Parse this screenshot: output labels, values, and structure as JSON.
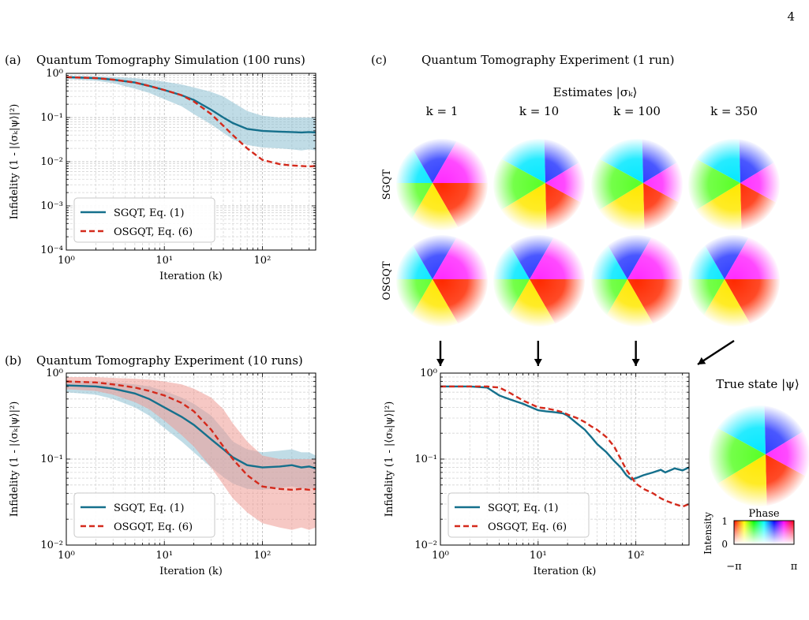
{
  "page_number": "4",
  "colors": {
    "sgqt": "#15708c",
    "osgqt": "#d42a1c",
    "sgqt_band": "#8cbfd1",
    "osgqt_band": "#ef9a93"
  },
  "panel_a": {
    "label": "(a)",
    "title": "Quantum Tomography Simulation (100 runs)",
    "ylabel": "Infidelity (1 - |⟨σₖ|ψ⟩|²)",
    "xlabel": "Iteration (k)",
    "xticks": [
      "10⁰",
      "10¹",
      "10²"
    ],
    "yticks": [
      "10⁰",
      "10⁻¹",
      "10⁻²",
      "10⁻³",
      "10⁻⁴"
    ],
    "legend": [
      "SGQT, Eq. (1)",
      "OSGQT, Eq. (6)"
    ]
  },
  "panel_b": {
    "label": "(b)",
    "title": "Quantum Tomography Experiment (10 runs)",
    "ylabel": "Infidelity (1 - |⟨σₖ|ψ⟩|²)",
    "xlabel": "Iteration (k)",
    "xticks": [
      "10⁰",
      "10¹",
      "10²"
    ],
    "yticks": [
      "10⁰",
      "10⁻¹",
      "10⁻²"
    ],
    "legend": [
      "SGQT, Eq. (1)",
      "OSGQT, Eq. (6)"
    ]
  },
  "panel_c": {
    "label": "(c)",
    "title": "Quantum Tomography Experiment (1 run)",
    "estimates_header": "Estimates |σₖ⟩",
    "k_labels": [
      "k = 1",
      "k = 10",
      "k = 100",
      "k = 350"
    ],
    "row_labels": [
      "SGQT",
      "OSGQT"
    ],
    "true_state_label": "True state |ψ⟩",
    "ylabel": "Infidelity (1 - |⟨σₖ|ψ⟩|²)",
    "xlabel": "Iteration (k)",
    "xticks": [
      "10⁰",
      "10¹",
      "10²"
    ],
    "yticks": [
      "10⁰",
      "10⁻¹",
      "10⁻²"
    ],
    "legend": [
      "SGQT, Eq. (1)",
      "OSGQT, Eq. (6)"
    ],
    "colorbar": {
      "title": "Phase",
      "ylabel": "Intensity",
      "yticks": [
        "1",
        "0"
      ],
      "xticks": [
        "−π",
        "π"
      ]
    }
  },
  "chart_data": [
    {
      "type": "line",
      "title": "Quantum Tomography Simulation (100 runs)",
      "xlabel": "Iteration (k)",
      "ylabel": "Infidelity (1 - |⟨σₖ|ψ⟩|²)",
      "x_scale": "log",
      "y_scale": "log",
      "xlim": [
        1,
        350
      ],
      "ylim": [
        0.0001,
        1
      ],
      "grid": true,
      "legend": "lower-left",
      "series": [
        {
          "name": "SGQT, Eq. (1)",
          "x": [
            1,
            2,
            3,
            5,
            7,
            10,
            15,
            20,
            30,
            40,
            50,
            70,
            100,
            150,
            200,
            250,
            300,
            350
          ],
          "y": [
            0.82,
            0.78,
            0.72,
            0.62,
            0.52,
            0.42,
            0.32,
            0.25,
            0.15,
            0.1,
            0.075,
            0.055,
            0.05,
            0.048,
            0.047,
            0.046,
            0.047,
            0.046
          ],
          "band_low": [
            0.75,
            0.68,
            0.6,
            0.45,
            0.36,
            0.26,
            0.18,
            0.12,
            0.07,
            0.045,
            0.032,
            0.024,
            0.021,
            0.02,
            0.019,
            0.018,
            0.019,
            0.018
          ],
          "band_high": [
            0.88,
            0.86,
            0.83,
            0.78,
            0.72,
            0.65,
            0.56,
            0.48,
            0.38,
            0.3,
            0.22,
            0.14,
            0.11,
            0.1,
            0.1,
            0.1,
            0.1,
            0.1
          ]
        },
        {
          "name": "OSGQT, Eq. (6)",
          "x": [
            1,
            2,
            3,
            5,
            7,
            10,
            15,
            20,
            30,
            40,
            50,
            70,
            100,
            150,
            200,
            250,
            300,
            350
          ],
          "y": [
            0.82,
            0.78,
            0.72,
            0.62,
            0.52,
            0.42,
            0.32,
            0.23,
            0.12,
            0.065,
            0.04,
            0.02,
            0.011,
            0.0088,
            0.0082,
            0.008,
            0.0078,
            0.008
          ]
        }
      ]
    },
    {
      "type": "line",
      "title": "Quantum Tomography Experiment (10 runs)",
      "xlabel": "Iteration (k)",
      "ylabel": "Infidelity (1 - |⟨σₖ|ψ⟩|²)",
      "x_scale": "log",
      "y_scale": "log",
      "xlim": [
        1,
        350
      ],
      "ylim": [
        0.01,
        1
      ],
      "grid": true,
      "legend": "lower-left",
      "series": [
        {
          "name": "SGQT, Eq. (1)",
          "x": [
            1,
            2,
            3,
            5,
            7,
            10,
            15,
            20,
            30,
            40,
            50,
            70,
            100,
            150,
            200,
            250,
            300,
            350
          ],
          "y": [
            0.72,
            0.7,
            0.66,
            0.58,
            0.5,
            0.4,
            0.31,
            0.25,
            0.17,
            0.13,
            0.105,
            0.085,
            0.08,
            0.082,
            0.085,
            0.08,
            0.082,
            0.078
          ],
          "band_low": [
            0.6,
            0.56,
            0.5,
            0.4,
            0.32,
            0.23,
            0.16,
            0.12,
            0.08,
            0.062,
            0.052,
            0.045,
            0.044,
            0.046,
            0.048,
            0.045,
            0.046,
            0.044
          ],
          "band_high": [
            0.82,
            0.8,
            0.78,
            0.74,
            0.7,
            0.62,
            0.52,
            0.44,
            0.32,
            0.22,
            0.16,
            0.13,
            0.12,
            0.125,
            0.13,
            0.12,
            0.12,
            0.11
          ]
        },
        {
          "name": "OSGQT, Eq. (6)",
          "x": [
            1,
            2,
            3,
            5,
            7,
            10,
            15,
            20,
            30,
            40,
            50,
            70,
            100,
            150,
            200,
            250,
            300,
            350
          ],
          "y": [
            0.8,
            0.78,
            0.74,
            0.68,
            0.62,
            0.55,
            0.45,
            0.36,
            0.22,
            0.14,
            0.1,
            0.065,
            0.048,
            0.045,
            0.044,
            0.045,
            0.044,
            0.045
          ],
          "band_low": [
            0.65,
            0.62,
            0.56,
            0.46,
            0.38,
            0.28,
            0.19,
            0.14,
            0.08,
            0.05,
            0.035,
            0.024,
            0.018,
            0.016,
            0.015,
            0.016,
            0.015,
            0.016
          ],
          "band_high": [
            0.9,
            0.9,
            0.88,
            0.86,
            0.84,
            0.8,
            0.74,
            0.66,
            0.52,
            0.38,
            0.26,
            0.16,
            0.11,
            0.1,
            0.1,
            0.1,
            0.1,
            0.1
          ]
        }
      ]
    },
    {
      "type": "line",
      "title": "Quantum Tomography Experiment (1 run)",
      "xlabel": "Iteration (k)",
      "ylabel": "Infidelity (1 - |⟨σₖ|ψ⟩|²)",
      "x_scale": "log",
      "y_scale": "log",
      "xlim": [
        1,
        350
      ],
      "ylim": [
        0.01,
        1
      ],
      "grid": true,
      "legend": "lower-left",
      "markers_at_k": [
        1,
        10,
        100,
        350
      ],
      "series": [
        {
          "name": "SGQT, Eq. (1)",
          "x": [
            1,
            2,
            3,
            4,
            5,
            7,
            10,
            12,
            15,
            18,
            20,
            25,
            30,
            35,
            40,
            50,
            60,
            70,
            80,
            90,
            100,
            120,
            150,
            180,
            200,
            250,
            300,
            350
          ],
          "y": [
            0.7,
            0.7,
            0.68,
            0.55,
            0.5,
            0.44,
            0.37,
            0.36,
            0.35,
            0.34,
            0.32,
            0.26,
            0.22,
            0.18,
            0.15,
            0.12,
            0.095,
            0.08,
            0.065,
            0.058,
            0.06,
            0.065,
            0.07,
            0.075,
            0.07,
            0.078,
            0.074,
            0.08
          ]
        },
        {
          "name": "OSGQT, Eq. (6)",
          "x": [
            1,
            2,
            3,
            4,
            5,
            7,
            10,
            12,
            15,
            18,
            20,
            25,
            30,
            35,
            40,
            50,
            60,
            70,
            80,
            90,
            100,
            120,
            150,
            180,
            200,
            250,
            300,
            350
          ],
          "y": [
            0.7,
            0.7,
            0.7,
            0.68,
            0.6,
            0.48,
            0.4,
            0.39,
            0.37,
            0.35,
            0.33,
            0.3,
            0.27,
            0.24,
            0.22,
            0.18,
            0.14,
            0.1,
            0.075,
            0.062,
            0.052,
            0.045,
            0.04,
            0.035,
            0.033,
            0.03,
            0.028,
            0.03
          ]
        }
      ]
    }
  ]
}
